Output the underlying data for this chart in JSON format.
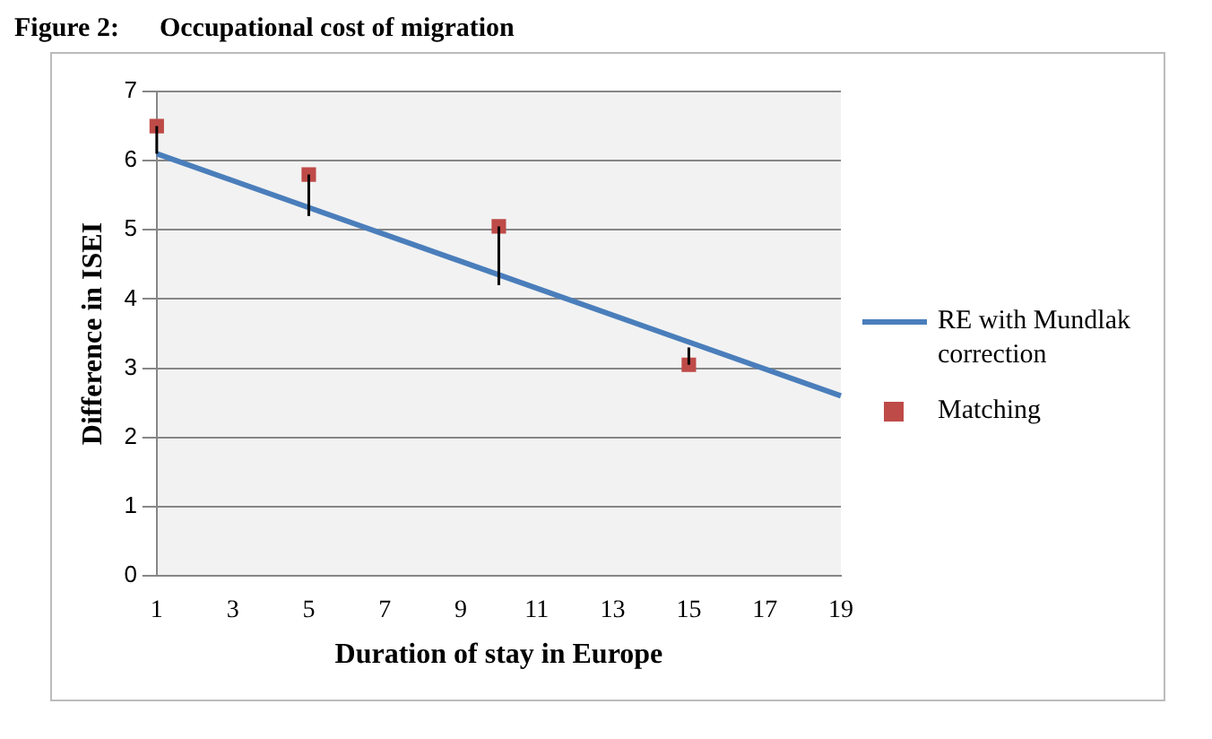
{
  "chart_data": {
    "type": "line",
    "title": "Figure 2:      Occupational cost of migration",
    "xlabel": "Duration of stay in Europe",
    "ylabel": "Difference in ISEI",
    "series": [
      {
        "name": "RE with Mundlak correction",
        "color": "#4a7ebb",
        "marker": "none",
        "x": [
          1,
          19
        ],
        "values": [
          6.1,
          2.6
        ]
      },
      {
        "name": "Matching",
        "type": "scatter",
        "color": "#be4b48",
        "marker": "square",
        "x": [
          1,
          5,
          10,
          15
        ],
        "values": [
          6.5,
          5.8,
          5.05,
          3.05
        ],
        "errors": [
          [
            6.1,
            6.5
          ],
          [
            5.2,
            5.8
          ],
          [
            4.2,
            5.05
          ],
          [
            3.05,
            3.3
          ]
        ]
      }
    ],
    "xlim": [
      1,
      19
    ],
    "xticks": [
      1,
      3,
      5,
      7,
      9,
      11,
      13,
      15,
      17,
      19
    ],
    "ylim": [
      0,
      7
    ],
    "yticks": [
      0,
      1,
      2,
      3,
      4,
      5,
      6,
      7
    ],
    "grid": "y",
    "legend": "right"
  }
}
